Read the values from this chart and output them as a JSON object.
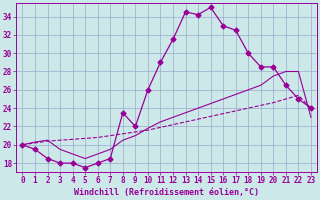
{
  "xlabel": "Windchill (Refroidissement éolien,°C)",
  "x_hours": [
    0,
    1,
    2,
    3,
    4,
    5,
    6,
    7,
    8,
    9,
    10,
    11,
    12,
    13,
    14,
    15,
    16,
    17,
    18,
    19,
    20,
    21,
    22,
    23
  ],
  "main_y": [
    20.0,
    19.5,
    18.5,
    18.0,
    18.0,
    17.5,
    18.0,
    18.5,
    23.5,
    22.0,
    26.0,
    29.0,
    31.5,
    34.5,
    34.2,
    35.0,
    33.0,
    32.5,
    30.0,
    28.5,
    28.5,
    26.5,
    25.0,
    24.0
  ],
  "trend_upper_y": [
    20.0,
    20.3,
    20.5,
    19.5,
    19.0,
    18.5,
    19.0,
    19.5,
    20.5,
    21.0,
    21.8,
    22.5,
    23.0,
    23.5,
    24.0,
    24.5,
    25.0,
    25.5,
    26.0,
    26.5,
    27.5,
    28.0,
    28.0,
    23.0
  ],
  "trend_lower_y": [
    20.0,
    20.2,
    20.4,
    20.5,
    20.6,
    20.7,
    20.8,
    21.0,
    21.2,
    21.4,
    21.6,
    21.9,
    22.2,
    22.5,
    22.8,
    23.1,
    23.4,
    23.7,
    24.0,
    24.3,
    24.6,
    25.0,
    25.4,
    24.0
  ],
  "bg_color": "#cce8e8",
  "line_color": "#990099",
  "grid_color": "#99aacc",
  "ylim": [
    17.0,
    35.5
  ],
  "yticks": [
    18,
    20,
    22,
    24,
    26,
    28,
    30,
    32,
    34
  ],
  "tick_fontsize": 5.5,
  "label_fontsize": 6.0
}
